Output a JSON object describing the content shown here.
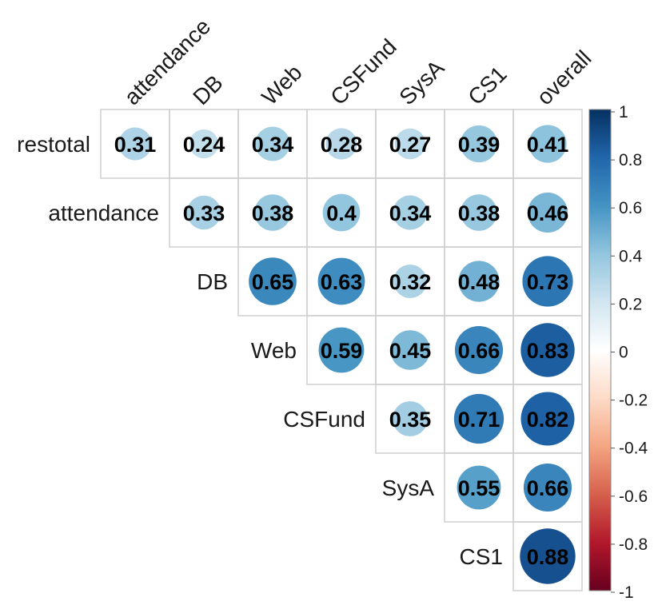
{
  "chart_data": {
    "type": "heatmap",
    "subtype": "correlation-matrix-upper",
    "method": "circle",
    "rows": [
      "restotal",
      "attendance",
      "DB",
      "Web",
      "CSFund",
      "SysA",
      "CS1"
    ],
    "columns": [
      "attendance",
      "DB",
      "Web",
      "CSFund",
      "SysA",
      "CS1",
      "overall"
    ],
    "values": [
      [
        0.31,
        0.24,
        0.34,
        0.28,
        0.27,
        0.39,
        0.41
      ],
      [
        null,
        0.33,
        0.38,
        0.4,
        0.34,
        0.38,
        0.46
      ],
      [
        null,
        null,
        0.65,
        0.63,
        0.32,
        0.48,
        0.73
      ],
      [
        null,
        null,
        null,
        0.59,
        0.45,
        0.66,
        0.83
      ],
      [
        null,
        null,
        null,
        null,
        0.35,
        0.71,
        0.82
      ],
      [
        null,
        null,
        null,
        null,
        null,
        0.55,
        0.66
      ],
      [
        null,
        null,
        null,
        null,
        null,
        null,
        0.88
      ]
    ],
    "value_labels": [
      [
        "0.31",
        "0.24",
        "0.34",
        "0.28",
        "0.27",
        "0.39",
        "0.41"
      ],
      [
        null,
        "0.33",
        "0.38",
        "0.4",
        "0.34",
        "0.38",
        "0.46"
      ],
      [
        null,
        null,
        "0.65",
        "0.63",
        "0.32",
        "0.48",
        "0.73"
      ],
      [
        null,
        null,
        null,
        "0.59",
        "0.45",
        "0.66",
        "0.83"
      ],
      [
        null,
        null,
        null,
        null,
        "0.35",
        "0.71",
        "0.82"
      ],
      [
        null,
        null,
        null,
        null,
        null,
        "0.55",
        "0.66"
      ],
      [
        null,
        null,
        null,
        null,
        null,
        null,
        "0.88"
      ]
    ],
    "colorbar": {
      "range": [
        -1,
        1
      ],
      "ticks": [
        "1",
        "0.8",
        "0.6",
        "0.4",
        "0.2",
        "0",
        "-0.2",
        "-0.4",
        "-0.6",
        "-0.8",
        "-1"
      ],
      "colors": [
        "#67001F",
        "#B2182B",
        "#D6604D",
        "#F4A582",
        "#FDDBC7",
        "#FFFFFF",
        "#D1E5F0",
        "#92C5DE",
        "#4393C3",
        "#2166AC",
        "#053061"
      ]
    },
    "grid": true,
    "title": "",
    "xlabel": "",
    "ylabel": ""
  }
}
